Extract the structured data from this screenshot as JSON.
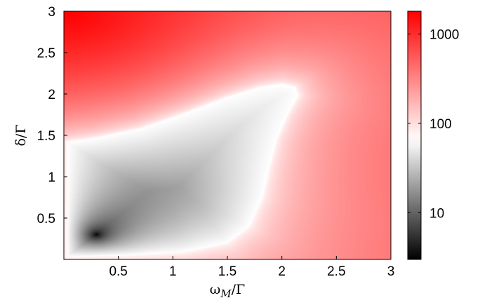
{
  "chart_data": {
    "type": "heatmap",
    "title": "",
    "xlabel": {
      "main": "ω",
      "subscript": "M",
      "suffix": "/Γ"
    },
    "ylabel": "δ/Γ",
    "xlim": [
      0,
      3
    ],
    "ylim": [
      0,
      3
    ],
    "x_ticks": [
      {
        "value": 0.5,
        "label": "0.5"
      },
      {
        "value": 1,
        "label": "1"
      },
      {
        "value": 1.5,
        "label": "1.5"
      },
      {
        "value": 2,
        "label": "2"
      },
      {
        "value": 2.5,
        "label": "2.5"
      },
      {
        "value": 3,
        "label": "3"
      }
    ],
    "y_ticks": [
      {
        "value": 0.5,
        "label": "0.5"
      },
      {
        "value": 1,
        "label": "1"
      },
      {
        "value": 1.5,
        "label": "1.5"
      },
      {
        "value": 2,
        "label": "2"
      },
      {
        "value": 2.5,
        "label": "2.5"
      },
      {
        "value": 3,
        "label": "3"
      }
    ],
    "colorbar": {
      "scale": "log",
      "range": [
        3,
        1800
      ],
      "colormap": [
        {
          "value": 3,
          "color": "#000000"
        },
        {
          "value": 65,
          "color": "#ffffff"
        },
        {
          "value": 1800,
          "color": "#ff0000"
        }
      ],
      "ticks": [
        {
          "value": 10,
          "label": "10"
        },
        {
          "value": 100,
          "label": "100"
        },
        {
          "value": 1000,
          "label": "1000"
        }
      ]
    },
    "features": {
      "minimum": {
        "x": 0.3,
        "y": 0.3,
        "value": 3
      },
      "white_contour_value": 65,
      "white_contour": [
        [
          0.03,
          1.42
        ],
        [
          0.3,
          1.47
        ],
        [
          0.7,
          1.58
        ],
        [
          1.1,
          1.76
        ],
        [
          1.5,
          1.96
        ],
        [
          1.8,
          2.08
        ],
        [
          2.0,
          2.12
        ],
        [
          2.12,
          2.08
        ],
        [
          2.15,
          1.98
        ],
        [
          2.05,
          1.75
        ],
        [
          1.95,
          1.45
        ],
        [
          1.88,
          1.1
        ],
        [
          1.82,
          0.75
        ],
        [
          1.7,
          0.4
        ],
        [
          1.5,
          0.2
        ],
        [
          1.1,
          0.09
        ],
        [
          0.6,
          0.05
        ],
        [
          0.03,
          0.03
        ]
      ],
      "max_region": {
        "x": 0.05,
        "y": 3.0,
        "value": 1800
      }
    }
  }
}
